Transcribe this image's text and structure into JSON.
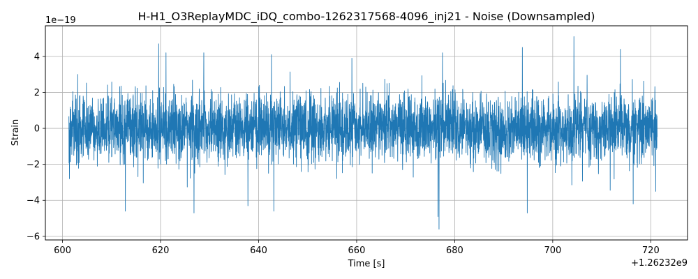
{
  "chart_data": {
    "type": "line",
    "title": "H-H1_O3ReplayMDC_iDQ_combo-1262317568-4096_inj21 - Noise (Downsampled)",
    "xlabel": "Time [s]",
    "ylabel": "Strain",
    "x_offset_label": "+1.26232e9",
    "y_scale_label": "1e−19",
    "xlim": [
      596.5,
      727.5
    ],
    "ylim": [
      -6.2,
      5.7
    ],
    "x_ticks": [
      600,
      620,
      640,
      660,
      680,
      700,
      720
    ],
    "x_tick_labels": [
      "600",
      "620",
      "640",
      "660",
      "680",
      "700",
      "720"
    ],
    "y_ticks": [
      -6,
      -4,
      -2,
      0,
      2,
      4
    ],
    "y_tick_labels": [
      "−6",
      "−4",
      "−2",
      "0",
      "2",
      "4"
    ],
    "grid": true,
    "series": [
      {
        "color": "#1f77b4",
        "x_range": [
          601.3,
          721.3
        ],
        "noise_sigma": 1.0,
        "extremes": [
          {
            "x": 601.4,
            "y": -2.8
          },
          {
            "x": 603.1,
            "y": 3.0
          },
          {
            "x": 612.8,
            "y": -4.6
          },
          {
            "x": 619.6,
            "y": 4.7
          },
          {
            "x": 621.1,
            "y": 4.2
          },
          {
            "x": 626.8,
            "y": -4.7
          },
          {
            "x": 628.8,
            "y": 4.2
          },
          {
            "x": 637.8,
            "y": -4.3
          },
          {
            "x": 642.6,
            "y": 4.1
          },
          {
            "x": 643.1,
            "y": -4.6
          },
          {
            "x": 659.0,
            "y": 3.9
          },
          {
            "x": 676.8,
            "y": -5.6
          },
          {
            "x": 676.6,
            "y": -4.9
          },
          {
            "x": 677.5,
            "y": 4.2
          },
          {
            "x": 693.8,
            "y": 4.5
          },
          {
            "x": 694.8,
            "y": -4.7
          },
          {
            "x": 704.3,
            "y": 5.1
          },
          {
            "x": 713.8,
            "y": 4.4
          },
          {
            "x": 716.4,
            "y": -4.2
          },
          {
            "x": 721.0,
            "y": -3.5
          }
        ]
      }
    ]
  }
}
